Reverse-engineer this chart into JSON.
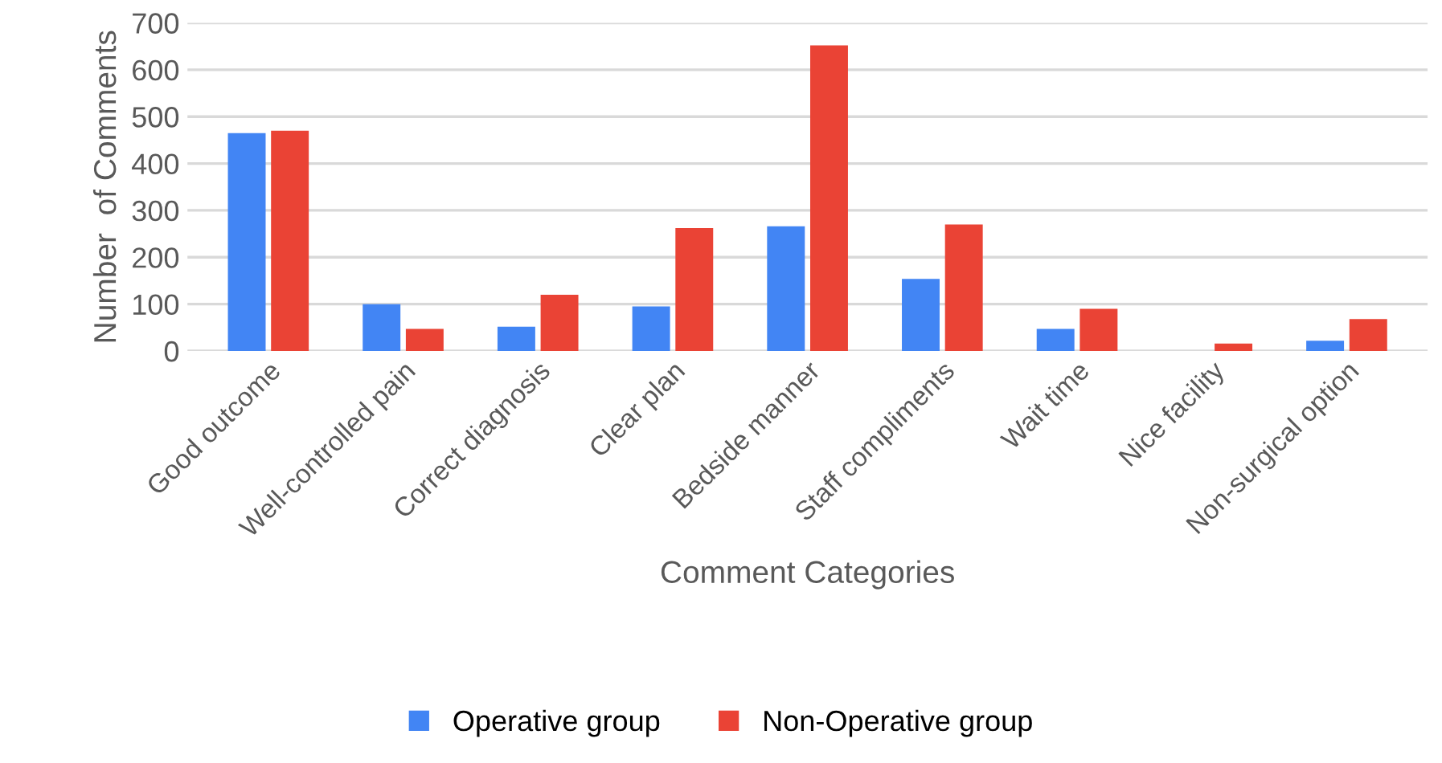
{
  "chart_data": {
    "type": "bar",
    "xlabel": "Comment Categories",
    "ylabel": "Number  of Comments",
    "categories": [
      "Good outcome",
      "Well-controlled pain",
      "Correct diagnosis",
      "Clear plan",
      "Bedside manner",
      "Staff compliments",
      "Wait time",
      "Nice facility",
      "Non-surgical option"
    ],
    "series": [
      {
        "name": "Operative group",
        "color": "#4285f4",
        "values": [
          465,
          100,
          52,
          95,
          266,
          154,
          47,
          0,
          22
        ]
      },
      {
        "name": "Non-Operative group",
        "color": "#ea4335",
        "values": [
          470,
          47,
          120,
          262,
          652,
          270,
          90,
          16,
          68
        ]
      }
    ],
    "ylim": [
      0,
      700
    ],
    "yticks": [
      0,
      100,
      200,
      300,
      400,
      500,
      600,
      700
    ],
    "grid": "y",
    "legend": "bottom"
  }
}
